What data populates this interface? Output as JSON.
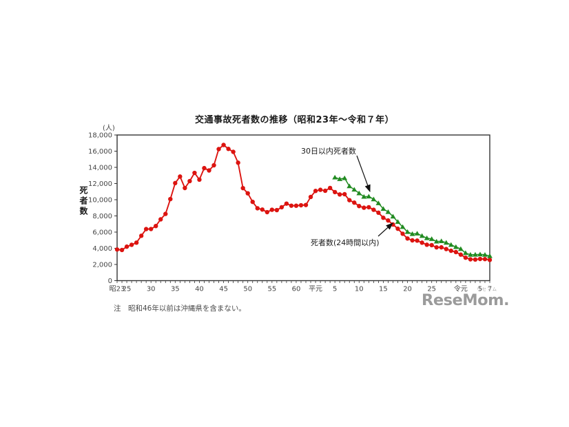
{
  "page": {
    "note": "注　昭和46年以前は沖縄県を含まない。",
    "logo": {
      "text": "ReseMom.",
      "furigana": "リセマム"
    }
  },
  "chart_data": {
    "type": "line",
    "title": "交通事故死者数の推移（昭和23年～令和７年）",
    "y_unit": "(人)",
    "ylabel": "死者数",
    "xlabel": "",
    "ylim": [
      0,
      18000
    ],
    "y_tick_step": 2000,
    "y_ticks": [
      "0",
      "2,000",
      "4,000",
      "6,000",
      "8,000",
      "10,000",
      "12,000",
      "14,000",
      "16,000",
      "18,000"
    ],
    "x_range_years": [
      1948,
      2025
    ],
    "x_tick_labels": [
      {
        "year": 1948,
        "label": "昭23"
      },
      {
        "year": 1950,
        "label": "25"
      },
      {
        "year": 1955,
        "label": "30"
      },
      {
        "year": 1960,
        "label": "35"
      },
      {
        "year": 1965,
        "label": "40"
      },
      {
        "year": 1970,
        "label": "45"
      },
      {
        "year": 1975,
        "label": "50"
      },
      {
        "year": 1980,
        "label": "55"
      },
      {
        "year": 1985,
        "label": "60"
      },
      {
        "year": 1989,
        "label": "平元"
      },
      {
        "year": 1993,
        "label": "5"
      },
      {
        "year": 1998,
        "label": "10"
      },
      {
        "year": 2003,
        "label": "15"
      },
      {
        "year": 2008,
        "label": "20"
      },
      {
        "year": 2013,
        "label": "25"
      },
      {
        "year": 2019,
        "label": "令元"
      },
      {
        "year": 2023,
        "label": "5"
      },
      {
        "year": 2025,
        "label": "7"
      }
    ],
    "grid": false,
    "legend_position": "inline-annotations",
    "annotations": [
      {
        "text": "30日以内死者数",
        "target": "30day-series"
      },
      {
        "text": "死者数(24時間以内)",
        "target": "24h-series"
      }
    ],
    "series": [
      {
        "name": "死者数(24時間以内)",
        "color": "#dc1410",
        "marker": "circle",
        "start_year": 1948,
        "values": [
          3848,
          3790,
          4202,
          4429,
          4696,
          5544,
          6374,
          6379,
          6751,
          7575,
          8248,
          10079,
          12055,
          12865,
          11445,
          12301,
          13318,
          12484,
          13904,
          13618,
          14256,
          16257,
          16765,
          16278,
          15918,
          14574,
          11432,
          10792,
          9734,
          8945,
          8783,
          8466,
          8760,
          8719,
          9073,
          9520,
          9262,
          9261,
          9317,
          9347,
          10344,
          11086,
          11227,
          11109,
          11452,
          10945,
          10653,
          10684,
          9943,
          9642,
          9214,
          9012,
          9073,
          8757,
          8396,
          7768,
          7436,
          6937,
          6415,
          5796,
          5209,
          4979,
          4948,
          4691,
          4438,
          4388,
          4113,
          4117,
          3904,
          3694,
          3532,
          3215,
          2839,
          2636,
          2610,
          2678,
          2663,
          2566
        ]
      },
      {
        "name": "30日以内死者数",
        "color": "#228b22",
        "marker": "triangle",
        "start_year": 1993,
        "values": [
          12756,
          12554,
          12670,
          11674,
          11254,
          10805,
          10372,
          10403,
          10060,
          9575,
          8877,
          8492,
          7931,
          7272,
          6639,
          6023,
          5772,
          5828,
          5535,
          5261,
          5152,
          4838,
          4885,
          4698,
          4431,
          4166,
          3920,
          3416,
          3205,
          3216,
          3250,
          3200,
          3050
        ]
      }
    ],
    "axis_color": "#333333",
    "tick_label_color": "#444444"
  }
}
